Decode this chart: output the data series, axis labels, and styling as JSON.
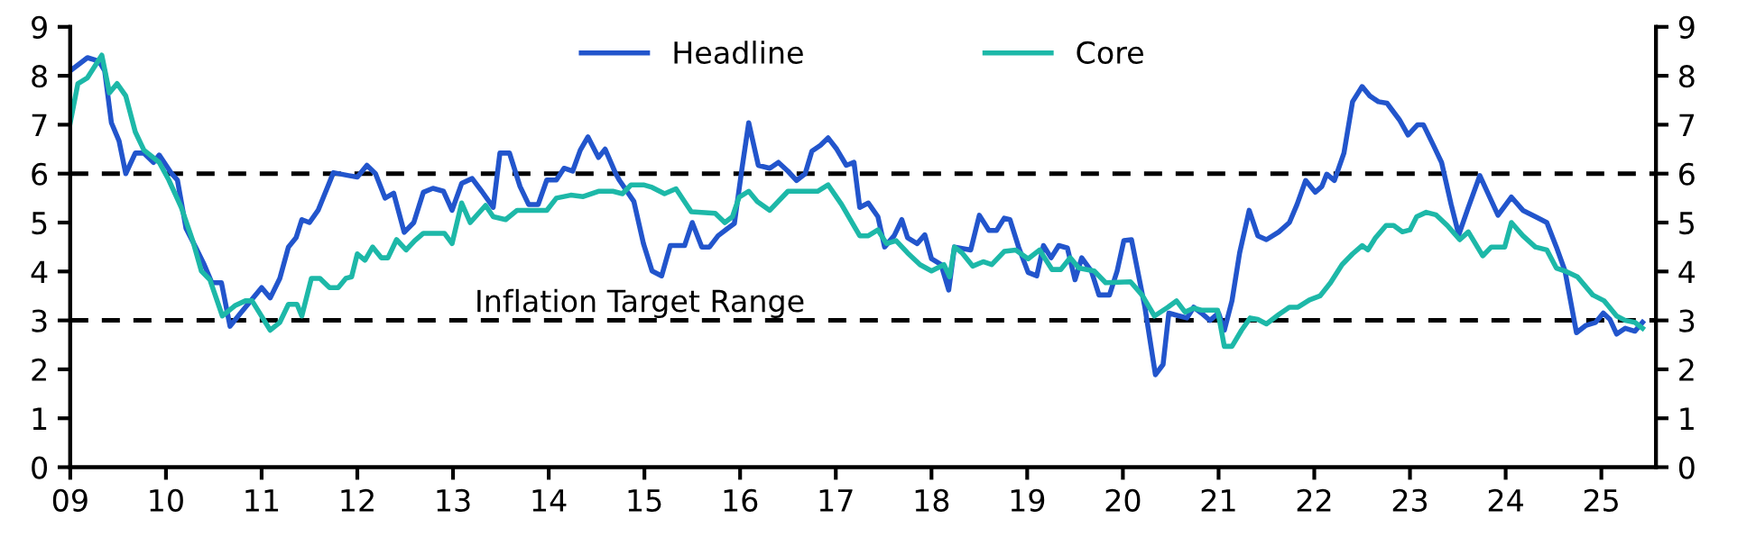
{
  "chart_data": {
    "type": "line",
    "xlim": [
      2009,
      2025.57
    ],
    "xticks": [
      {
        "value": 2009,
        "label": "09"
      },
      {
        "value": 2010,
        "label": "10"
      },
      {
        "value": 2011,
        "label": "11"
      },
      {
        "value": 2012,
        "label": "12"
      },
      {
        "value": 2013,
        "label": "13"
      },
      {
        "value": 2014,
        "label": "14"
      },
      {
        "value": 2015,
        "label": "15"
      },
      {
        "value": 2016,
        "label": "16"
      },
      {
        "value": 2017,
        "label": "17"
      },
      {
        "value": 2018,
        "label": "18"
      },
      {
        "value": 2019,
        "label": "19"
      },
      {
        "value": 2020,
        "label": "20"
      },
      {
        "value": 2021,
        "label": "21"
      },
      {
        "value": 2022,
        "label": "22"
      },
      {
        "value": 2023,
        "label": "23"
      },
      {
        "value": 2024,
        "label": "24"
      },
      {
        "value": 2025,
        "label": "25"
      }
    ],
    "ylim": [
      0,
      9
    ],
    "yticks": [
      0,
      1,
      2,
      3,
      4,
      5,
      6,
      7,
      8,
      9
    ],
    "y2lim": [
      0,
      9
    ],
    "y2ticks": [
      0,
      1,
      2,
      3,
      4,
      5,
      6,
      7,
      8,
      9
    ],
    "grid": false,
    "legend": "top",
    "line_style": "solid",
    "marker": "none",
    "ref_lines": [
      {
        "axis": "y",
        "value": 6,
        "line_style": "dashed",
        "color": "#000000"
      },
      {
        "axis": "y",
        "value": 3,
        "label": "Inflation Target Range",
        "line_style": "dashed",
        "color": "#000000"
      }
    ],
    "series": [
      {
        "name": "Headline",
        "color": "#2255cc",
        "x": [
          2009.0,
          2009.18,
          2009.3,
          2009.36,
          2009.43,
          2009.51,
          2009.58,
          2009.68,
          2009.77,
          2009.87,
          2009.93,
          2010.06,
          2010.12,
          2010.21,
          2010.31,
          2010.4,
          2010.48,
          2010.58,
          2010.67,
          2010.78,
          2011.0,
          2011.09,
          2011.19,
          2011.28,
          2011.36,
          2011.42,
          2011.5,
          2011.59,
          2011.75,
          2011.91,
          2012.0,
          2012.1,
          2012.19,
          2012.29,
          2012.38,
          2012.49,
          2012.59,
          2012.69,
          2012.79,
          2012.9,
          2012.99,
          2013.09,
          2013.2,
          2013.3,
          2013.42,
          2013.49,
          2013.59,
          2013.7,
          2013.79,
          2013.89,
          2013.98,
          2014.08,
          2014.16,
          2014.25,
          2014.33,
          2014.41,
          2014.52,
          2014.59,
          2014.7,
          2014.74,
          2014.89,
          2014.99,
          2015.08,
          2015.18,
          2015.27,
          2015.42,
          2015.5,
          2015.6,
          2015.68,
          2015.77,
          2015.87,
          2015.94,
          2016.02,
          2016.09,
          2016.19,
          2016.31,
          2016.4,
          2016.5,
          2016.59,
          2016.68,
          2016.75,
          2016.84,
          2016.92,
          2017.01,
          2017.11,
          2017.19,
          2017.25,
          2017.34,
          2017.44,
          2017.51,
          2017.61,
          2017.69,
          2017.75,
          2017.85,
          2017.93,
          2018.0,
          2018.1,
          2018.18,
          2018.24,
          2018.41,
          2018.5,
          2018.6,
          2018.68,
          2018.76,
          2018.82,
          2018.91,
          2019.01,
          2019.1,
          2019.17,
          2019.25,
          2019.33,
          2019.42,
          2019.5,
          2019.57,
          2019.67,
          2019.75,
          2019.86,
          2019.94,
          2020.01,
          2020.09,
          2020.23,
          2020.34,
          2020.42,
          2020.48,
          2020.59,
          2020.67,
          2020.74,
          2020.82,
          2020.91,
          2021.0,
          2021.06,
          2021.14,
          2021.22,
          2021.32,
          2021.41,
          2021.5,
          2021.63,
          2021.74,
          2021.82,
          2021.91,
          2022.01,
          2022.08,
          2022.13,
          2022.21,
          2022.31,
          2022.4,
          2022.5,
          2022.58,
          2022.67,
          2022.76,
          2022.89,
          2022.98,
          2023.08,
          2023.14,
          2023.24,
          2023.33,
          2023.43,
          2023.51,
          2023.61,
          2023.73,
          2023.84,
          2023.92,
          2024.06,
          2024.18,
          2024.33,
          2024.43,
          2024.53,
          2024.62,
          2024.74,
          2024.84,
          2024.94,
          2025.02,
          2025.09,
          2025.16,
          2025.25,
          2025.35,
          2025.43
        ],
        "values": [
          8.1,
          8.37,
          8.3,
          8.1,
          7.04,
          6.67,
          6.0,
          6.42,
          6.42,
          6.23,
          6.38,
          6.0,
          5.87,
          4.88,
          4.5,
          4.14,
          3.77,
          3.77,
          2.88,
          3.15,
          3.67,
          3.46,
          3.86,
          4.5,
          4.69,
          5.06,
          5.0,
          5.25,
          6.02,
          5.96,
          5.93,
          6.17,
          6.0,
          5.5,
          5.6,
          4.8,
          5.0,
          5.62,
          5.7,
          5.64,
          5.25,
          5.8,
          5.9,
          5.64,
          5.31,
          6.42,
          6.42,
          5.74,
          5.37,
          5.37,
          5.87,
          5.87,
          6.11,
          6.05,
          6.48,
          6.75,
          6.33,
          6.5,
          6.0,
          5.86,
          5.43,
          4.57,
          4.01,
          3.91,
          4.53,
          4.53,
          5.0,
          4.5,
          4.5,
          4.73,
          4.88,
          4.98,
          6.11,
          7.04,
          6.17,
          6.11,
          6.23,
          6.05,
          5.86,
          6.0,
          6.46,
          6.58,
          6.73,
          6.5,
          6.17,
          6.23,
          5.31,
          5.4,
          5.12,
          4.5,
          4.73,
          5.06,
          4.69,
          4.57,
          4.75,
          4.26,
          4.14,
          3.62,
          4.5,
          4.44,
          5.15,
          4.84,
          4.84,
          5.09,
          5.06,
          4.5,
          3.98,
          3.91,
          4.53,
          4.28,
          4.53,
          4.48,
          3.83,
          4.28,
          4.01,
          3.52,
          3.52,
          4.01,
          4.63,
          4.65,
          3.27,
          1.89,
          2.1,
          3.15,
          3.09,
          3.05,
          3.27,
          3.15,
          3.0,
          3.15,
          2.8,
          3.4,
          4.38,
          5.25,
          4.73,
          4.65,
          4.81,
          5.0,
          5.37,
          5.86,
          5.62,
          5.74,
          5.99,
          5.86,
          6.42,
          7.47,
          7.78,
          7.59,
          7.47,
          7.44,
          7.1,
          6.79,
          7.0,
          7.0,
          6.6,
          6.23,
          5.37,
          4.75,
          5.31,
          5.96,
          5.49,
          5.15,
          5.52,
          5.25,
          5.1,
          5.0,
          4.5,
          4.01,
          2.75,
          2.9,
          2.96,
          3.15,
          3.02,
          2.72,
          2.84,
          2.78,
          2.96
        ]
      },
      {
        "name": "Core",
        "color": "#1db8a8",
        "x": [
          2009.0,
          2009.08,
          2009.18,
          2009.33,
          2009.41,
          2009.49,
          2009.58,
          2009.68,
          2009.77,
          2009.93,
          2010.03,
          2010.16,
          2010.28,
          2010.37,
          2010.46,
          2010.59,
          2010.72,
          2010.83,
          2010.9,
          2011.09,
          2011.19,
          2011.28,
          2011.37,
          2011.42,
          2011.52,
          2011.61,
          2011.71,
          2011.8,
          2011.88,
          2011.94,
          2012.0,
          2012.08,
          2012.16,
          2012.25,
          2012.32,
          2012.41,
          2012.51,
          2012.6,
          2012.69,
          2012.91,
          2012.99,
          2013.09,
          2013.18,
          2013.34,
          2013.42,
          2013.55,
          2013.67,
          2013.98,
          2014.08,
          2014.23,
          2014.36,
          2014.52,
          2014.67,
          2014.77,
          2014.86,
          2014.99,
          2015.08,
          2015.21,
          2015.33,
          2015.49,
          2015.74,
          2015.84,
          2015.92,
          2015.99,
          2016.09,
          2016.18,
          2016.31,
          2016.5,
          2016.81,
          2016.92,
          2017.06,
          2017.25,
          2017.34,
          2017.44,
          2017.53,
          2017.63,
          2017.75,
          2017.88,
          2018.0,
          2018.13,
          2018.19,
          2018.24,
          2018.32,
          2018.43,
          2018.54,
          2018.63,
          2018.76,
          2018.88,
          2019.01,
          2019.13,
          2019.26,
          2019.35,
          2019.45,
          2019.54,
          2019.7,
          2019.82,
          2020.08,
          2020.2,
          2020.33,
          2020.47,
          2020.56,
          2020.65,
          2020.74,
          2020.82,
          2020.99,
          2021.06,
          2021.14,
          2021.24,
          2021.33,
          2021.41,
          2021.5,
          2021.63,
          2021.74,
          2021.83,
          2021.95,
          2022.06,
          2022.17,
          2022.29,
          2022.4,
          2022.5,
          2022.56,
          2022.64,
          2022.75,
          2022.83,
          2022.92,
          2023.0,
          2023.07,
          2023.17,
          2023.27,
          2023.39,
          2023.52,
          2023.61,
          2023.76,
          2023.85,
          2023.99,
          2024.06,
          2024.18,
          2024.31,
          2024.43,
          2024.53,
          2024.62,
          2024.75,
          2024.91,
          2025.03,
          2025.16,
          2025.25,
          2025.35,
          2025.43
        ],
        "values": [
          7.04,
          7.84,
          7.96,
          8.42,
          7.65,
          7.84,
          7.59,
          6.85,
          6.48,
          6.23,
          5.87,
          5.31,
          4.63,
          4.01,
          3.83,
          3.09,
          3.3,
          3.4,
          3.4,
          2.8,
          2.96,
          3.33,
          3.33,
          3.09,
          3.86,
          3.86,
          3.67,
          3.67,
          3.86,
          3.89,
          4.36,
          4.23,
          4.5,
          4.28,
          4.28,
          4.65,
          4.44,
          4.63,
          4.78,
          4.78,
          4.57,
          5.4,
          5.0,
          5.35,
          5.12,
          5.06,
          5.25,
          5.25,
          5.5,
          5.56,
          5.53,
          5.64,
          5.64,
          5.59,
          5.77,
          5.77,
          5.72,
          5.59,
          5.69,
          5.22,
          5.19,
          5.0,
          5.12,
          5.52,
          5.64,
          5.43,
          5.25,
          5.64,
          5.64,
          5.77,
          5.37,
          4.73,
          4.73,
          4.85,
          4.57,
          4.63,
          4.38,
          4.14,
          4.01,
          4.14,
          3.89,
          4.5,
          4.38,
          4.11,
          4.2,
          4.14,
          4.41,
          4.44,
          4.26,
          4.44,
          4.04,
          4.04,
          4.28,
          4.07,
          4.01,
          3.77,
          3.79,
          3.52,
          3.09,
          3.27,
          3.4,
          3.17,
          3.25,
          3.21,
          3.21,
          2.47,
          2.47,
          2.8,
          3.05,
          3.02,
          2.93,
          3.12,
          3.27,
          3.27,
          3.42,
          3.5,
          3.77,
          4.14,
          4.36,
          4.53,
          4.44,
          4.69,
          4.94,
          4.94,
          4.81,
          4.85,
          5.12,
          5.21,
          5.16,
          4.94,
          4.65,
          4.81,
          4.32,
          4.5,
          4.5,
          5.0,
          4.73,
          4.5,
          4.44,
          4.07,
          4.01,
          3.89,
          3.52,
          3.4,
          3.09,
          3.0,
          2.96,
          2.84
        ]
      }
    ]
  }
}
